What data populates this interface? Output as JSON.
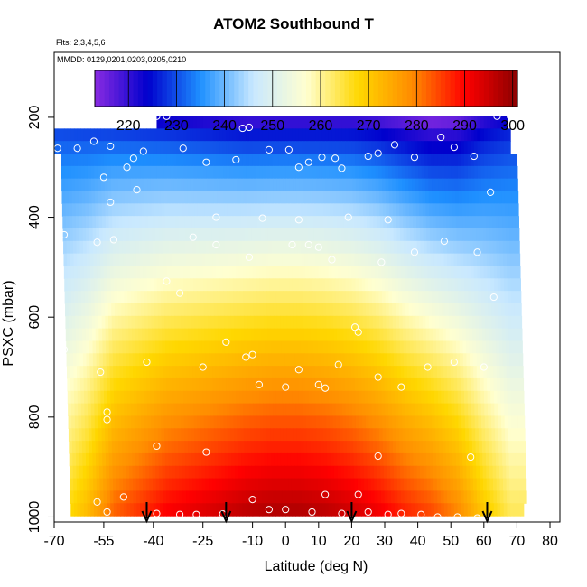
{
  "chart_data": {
    "type": "heatmap",
    "title": "ATOM2 Southbound T",
    "subtitle_flights": "Flts: 2,3,4,5,6",
    "subtitle_dates": "MMDD: 0129,0201,0203,0205,0210",
    "xlabel": "Latitude (deg N)",
    "ylabel": "PSXC (mbar)",
    "xlim": [
      -70,
      83
    ],
    "ylim": [
      1010,
      70
    ],
    "y_reversed": true,
    "x_ticks": [
      -70,
      -55,
      -40,
      -25,
      -10,
      0,
      10,
      20,
      30,
      40,
      50,
      60,
      70,
      80
    ],
    "y_ticks": [
      200,
      400,
      600,
      800,
      1000
    ],
    "colorbar": {
      "range": [
        213,
        301
      ],
      "ticks": [
        220,
        230,
        240,
        250,
        260,
        270,
        280,
        290,
        300
      ],
      "colors": [
        "#8a2be2",
        "#0000cd",
        "#1e90ff",
        "#c8e8ff",
        "#ffffd0",
        "#ffd700",
        "#ff8c00",
        "#ff0000",
        "#8b0000"
      ]
    },
    "pressure_levels": [
      210,
      235,
      260,
      285,
      310,
      335,
      360,
      385,
      410,
      435,
      460,
      485,
      510,
      535,
      560,
      585,
      610,
      635,
      660,
      685,
      710,
      735,
      760,
      785,
      810,
      835,
      860,
      885,
      910,
      935,
      960,
      985
    ],
    "latitude_bins": [
      -68,
      -60,
      -52,
      -44,
      -36,
      -28,
      -20,
      -12,
      -4,
      4,
      12,
      20,
      28,
      36,
      44,
      52,
      60,
      68
    ],
    "temperature_profile": {
      "surface_temperature": [
        265,
        272,
        282,
        286,
        290,
        292,
        294,
        296,
        297,
        297,
        296,
        294,
        291,
        287,
        284,
        279,
        270,
        263
      ],
      "tropopause_min": [
        227,
        226,
        225,
        224,
        223,
        222,
        221,
        220,
        220,
        220,
        220,
        220,
        219,
        217,
        215,
        216,
        221,
        224
      ]
    },
    "lat_extent_by_level": {
      "top_start": -39,
      "top_end": 67,
      "mid_start": -70,
      "mid_end": 70,
      "bottom_end": 72
    },
    "observations": [
      [
        -39,
        198
      ],
      [
        -36,
        198
      ],
      [
        -13,
        222
      ],
      [
        -11,
        220
      ],
      [
        64,
        198
      ],
      [
        68,
        198
      ],
      [
        -69,
        262
      ],
      [
        -63,
        262
      ],
      [
        -58,
        248
      ],
      [
        -53,
        258
      ],
      [
        -46,
        282
      ],
      [
        -43,
        268
      ],
      [
        -31,
        262
      ],
      [
        -24,
        290
      ],
      [
        -15,
        285
      ],
      [
        -5,
        265
      ],
      [
        1,
        265
      ],
      [
        4,
        300
      ],
      [
        7,
        290
      ],
      [
        11,
        280
      ],
      [
        15,
        282
      ],
      [
        17,
        302
      ],
      [
        25,
        278
      ],
      [
        28,
        272
      ],
      [
        33,
        255
      ],
      [
        39,
        280
      ],
      [
        47,
        240
      ],
      [
        51,
        260
      ],
      [
        57,
        278
      ],
      [
        62,
        350
      ],
      [
        -55,
        320
      ],
      [
        -53,
        370
      ],
      [
        -48,
        300
      ],
      [
        -45,
        345
      ],
      [
        -21,
        400
      ],
      [
        -7,
        402
      ],
      [
        2,
        455
      ],
      [
        4,
        405
      ],
      [
        19,
        400
      ],
      [
        31,
        405
      ],
      [
        -67,
        435
      ],
      [
        -57,
        450
      ],
      [
        -52,
        445
      ],
      [
        -36,
        528
      ],
      [
        -32,
        552
      ],
      [
        -28,
        440
      ],
      [
        -21,
        455
      ],
      [
        -11,
        480
      ],
      [
        7,
        455
      ],
      [
        10,
        460
      ],
      [
        14,
        485
      ],
      [
        29,
        490
      ],
      [
        39,
        470
      ],
      [
        48,
        448
      ],
      [
        58,
        470
      ],
      [
        63,
        560
      ],
      [
        -68,
        642
      ],
      [
        -67,
        665
      ],
      [
        -56,
        710
      ],
      [
        -42,
        690
      ],
      [
        -25,
        700
      ],
      [
        -18,
        650
      ],
      [
        -12,
        680
      ],
      [
        -10,
        675
      ],
      [
        -8,
        735
      ],
      [
        0,
        740
      ],
      [
        4,
        705
      ],
      [
        10,
        735
      ],
      [
        12,
        742
      ],
      [
        16,
        695
      ],
      [
        21,
        620
      ],
      [
        22,
        630
      ],
      [
        28,
        720
      ],
      [
        35,
        740
      ],
      [
        43,
        700
      ],
      [
        51,
        690
      ],
      [
        60,
        700
      ],
      [
        -54,
        790
      ],
      [
        -54,
        805
      ],
      [
        -39,
        858
      ],
      [
        -24,
        870
      ],
      [
        28,
        878
      ],
      [
        56,
        880
      ],
      [
        -67,
        900
      ],
      [
        -57,
        970
      ],
      [
        -54,
        990
      ],
      [
        -49,
        960
      ],
      [
        -39,
        993
      ],
      [
        -32,
        995
      ],
      [
        -27,
        995
      ],
      [
        -19,
        994
      ],
      [
        -10,
        965
      ],
      [
        -5,
        985
      ],
      [
        0,
        985
      ],
      [
        8,
        990
      ],
      [
        12,
        955
      ],
      [
        17,
        993
      ],
      [
        22,
        955
      ],
      [
        25,
        990
      ],
      [
        31,
        995
      ],
      [
        35,
        993
      ],
      [
        41,
        995
      ],
      [
        46,
        1000
      ],
      [
        52,
        1000
      ],
      [
        58,
        1002
      ]
    ],
    "arrows": [
      -42,
      -18,
      20,
      61
    ]
  }
}
